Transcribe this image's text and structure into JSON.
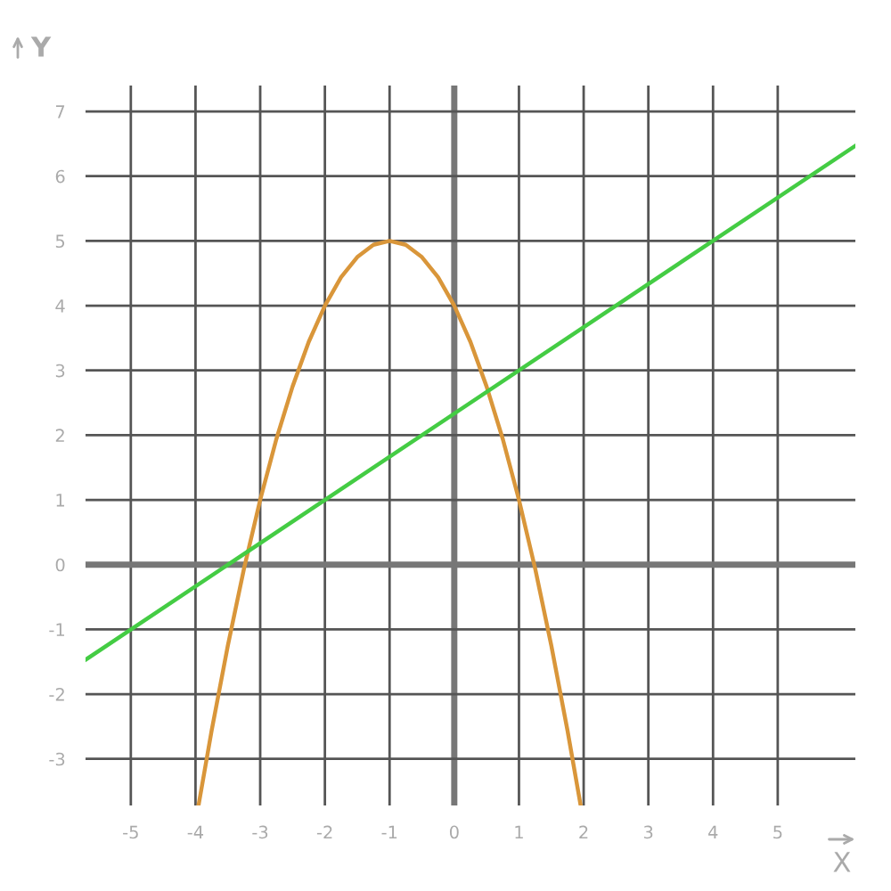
{
  "chart_data": {
    "type": "line",
    "xlabel": "X",
    "ylabel": "Y",
    "xlim": [
      -5.7,
      6.2
    ],
    "ylim": [
      -3.72,
      7.4
    ],
    "xticks": [
      -5,
      -4,
      -3,
      -2,
      -1,
      0,
      1,
      2,
      3,
      4,
      5
    ],
    "yticks": [
      -3,
      -2,
      -1,
      0,
      1,
      2,
      3,
      4,
      5,
      6,
      7
    ],
    "grid": true,
    "legend": false,
    "marker": "none",
    "line_style": "solid",
    "series": [
      {
        "color": "#d9963a",
        "x": [
          -3.95,
          -3.75,
          -3.5,
          -3.25,
          -3,
          -2.75,
          -2.5,
          -2.25,
          -2,
          -1.75,
          -1.5,
          -1.25,
          -1,
          -0.75,
          -0.5,
          -0.25,
          0,
          0.25,
          0.5,
          0.75,
          1,
          1.25,
          1.5,
          1.75,
          1.95
        ],
        "values": [
          -3.7,
          -2.56,
          -1.25,
          -0.06,
          1,
          1.94,
          2.75,
          3.44,
          4,
          4.44,
          4.75,
          4.94,
          5,
          4.94,
          4.75,
          4.44,
          4,
          3.44,
          2.75,
          1.94,
          1,
          -0.06,
          -1.25,
          -2.56,
          -3.7
        ]
      },
      {
        "color": "#44cc44",
        "x": [
          -5.7,
          6.2
        ],
        "values": [
          -1.47,
          6.47
        ]
      }
    ]
  }
}
